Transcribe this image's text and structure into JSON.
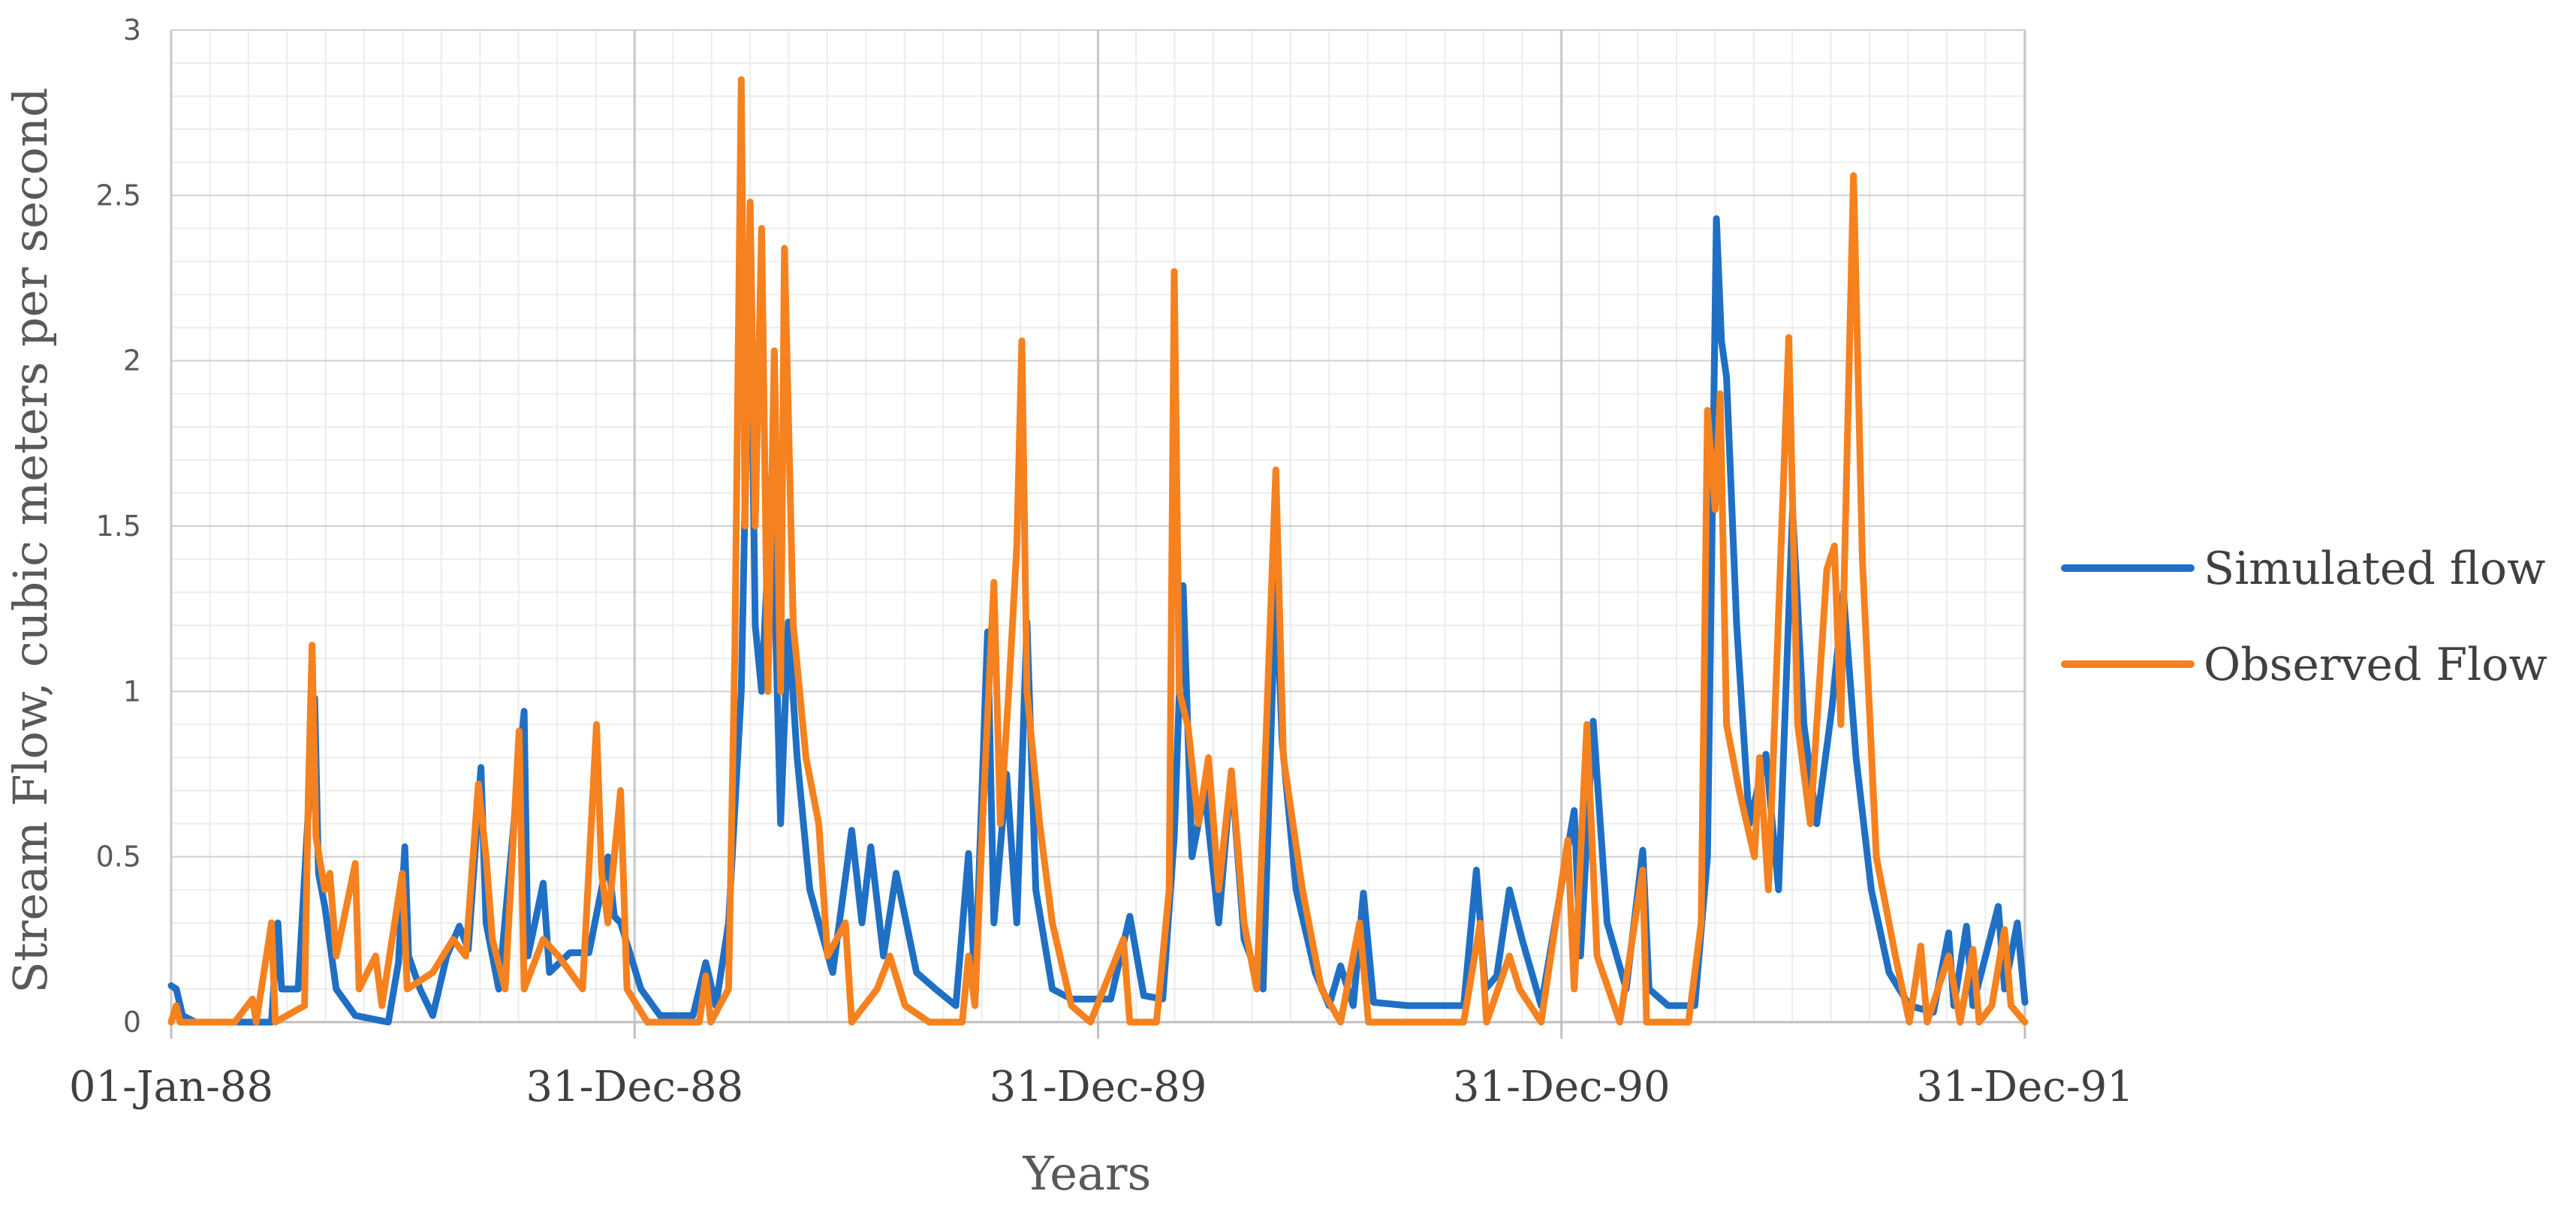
{
  "chart_data": {
    "type": "line",
    "ylabel": "Stream Flow, cubic meters per second",
    "xlabel": "Years",
    "ylim": [
      0,
      3
    ],
    "yticks": [
      "0",
      "0.5",
      "1",
      "1.5",
      "2",
      "2.5",
      "3"
    ],
    "xlim": [
      "1988-01-01",
      "1991-12-31"
    ],
    "xticks": [
      {
        "label": "01-Jan-88",
        "date": "1988-01-01"
      },
      {
        "label": "31-Dec-88",
        "date": "1988-12-31"
      },
      {
        "label": "31-Dec-89",
        "date": "1989-12-31"
      },
      {
        "label": "31-Dec-90",
        "date": "1990-12-31"
      },
      {
        "label": "31-Dec-91",
        "date": "1991-12-31"
      }
    ],
    "grid": true,
    "legend_position": "right",
    "series": [
      {
        "name": "Simulated flow",
        "color": "#1F6FC5",
        "points": [
          [
            "1988-01-01",
            0.11
          ],
          [
            "1988-01-05",
            0.1
          ],
          [
            "1988-01-10",
            0.02
          ],
          [
            "1988-01-20",
            0.0
          ],
          [
            "1988-03-01",
            0.0
          ],
          [
            "1988-03-20",
            0.0
          ],
          [
            "1988-03-25",
            0.3
          ],
          [
            "1988-03-28",
            0.1
          ],
          [
            "1988-04-10",
            0.1
          ],
          [
            "1988-04-20",
            0.77
          ],
          [
            "1988-04-23",
            0.98
          ],
          [
            "1988-04-26",
            0.45
          ],
          [
            "1988-05-01",
            0.35
          ],
          [
            "1988-05-10",
            0.1
          ],
          [
            "1988-05-25",
            0.02
          ],
          [
            "1988-06-20",
            0.0
          ],
          [
            "1988-06-28",
            0.18
          ],
          [
            "1988-07-03",
            0.53
          ],
          [
            "1988-07-06",
            0.2
          ],
          [
            "1988-07-15",
            0.1
          ],
          [
            "1988-07-25",
            0.02
          ],
          [
            "1988-08-05",
            0.2
          ],
          [
            "1988-08-15",
            0.29
          ],
          [
            "1988-08-22",
            0.22
          ],
          [
            "1988-09-01",
            0.77
          ],
          [
            "1988-09-05",
            0.3
          ],
          [
            "1988-09-15",
            0.1
          ],
          [
            "1988-10-05",
            0.94
          ],
          [
            "1988-10-08",
            0.2
          ],
          [
            "1988-10-20",
            0.42
          ],
          [
            "1988-10-25",
            0.15
          ],
          [
            "1988-11-10",
            0.21
          ],
          [
            "1988-11-25",
            0.21
          ],
          [
            "1988-12-10",
            0.5
          ],
          [
            "1988-12-15",
            0.32
          ],
          [
            "1988-12-20",
            0.3
          ],
          [
            "1989-01-05",
            0.1
          ],
          [
            "1989-01-20",
            0.02
          ],
          [
            "1989-02-15",
            0.02
          ],
          [
            "1989-02-25",
            0.18
          ],
          [
            "1989-03-05",
            0.05
          ],
          [
            "1989-03-15",
            0.3
          ],
          [
            "1989-03-25",
            1.0
          ],
          [
            "1989-04-01",
            2.35
          ],
          [
            "1989-04-05",
            1.2
          ],
          [
            "1989-04-10",
            1.0
          ],
          [
            "1989-04-18",
            1.65
          ],
          [
            "1989-04-25",
            0.6
          ],
          [
            "1989-05-01",
            1.21
          ],
          [
            "1989-05-08",
            0.8
          ],
          [
            "1989-05-18",
            0.4
          ],
          [
            "1989-06-05",
            0.15
          ],
          [
            "1989-06-20",
            0.58
          ],
          [
            "1989-06-28",
            0.3
          ],
          [
            "1989-07-05",
            0.53
          ],
          [
            "1989-07-15",
            0.2
          ],
          [
            "1989-07-25",
            0.45
          ],
          [
            "1989-08-10",
            0.15
          ],
          [
            "1989-08-25",
            0.1
          ],
          [
            "1989-09-10",
            0.05
          ],
          [
            "1989-09-20",
            0.51
          ],
          [
            "1989-09-25",
            0.1
          ],
          [
            "1989-10-05",
            1.18
          ],
          [
            "1989-10-10",
            0.3
          ],
          [
            "1989-10-20",
            0.75
          ],
          [
            "1989-10-28",
            0.3
          ],
          [
            "1989-11-05",
            1.21
          ],
          [
            "1989-11-12",
            0.4
          ],
          [
            "1989-11-25",
            0.1
          ],
          [
            "1989-12-10",
            0.07
          ],
          [
            "1989-12-31",
            0.07
          ],
          [
            "1990-01-10",
            0.07
          ],
          [
            "1990-01-25",
            0.32
          ],
          [
            "1990-02-05",
            0.08
          ],
          [
            "1990-02-20",
            0.07
          ],
          [
            "1990-03-01",
            0.56
          ],
          [
            "1990-03-08",
            1.32
          ],
          [
            "1990-03-15",
            0.5
          ],
          [
            "1990-03-25",
            0.7
          ],
          [
            "1990-04-05",
            0.3
          ],
          [
            "1990-04-15",
            0.76
          ],
          [
            "1990-04-25",
            0.25
          ],
          [
            "1990-05-10",
            0.1
          ],
          [
            "1990-05-20",
            1.34
          ],
          [
            "1990-05-25",
            0.85
          ],
          [
            "1990-06-05",
            0.4
          ],
          [
            "1990-06-20",
            0.15
          ],
          [
            "1990-07-01",
            0.05
          ],
          [
            "1990-07-10",
            0.17
          ],
          [
            "1990-07-20",
            0.05
          ],
          [
            "1990-07-28",
            0.39
          ],
          [
            "1990-08-05",
            0.06
          ],
          [
            "1990-09-01",
            0.05
          ],
          [
            "1990-10-01",
            0.05
          ],
          [
            "1990-10-15",
            0.05
          ],
          [
            "1990-10-25",
            0.46
          ],
          [
            "1990-11-01",
            0.1
          ],
          [
            "1990-11-10",
            0.14
          ],
          [
            "1990-11-20",
            0.4
          ],
          [
            "1990-11-30",
            0.25
          ],
          [
            "1990-12-15",
            0.05
          ],
          [
            "1991-01-10",
            0.64
          ],
          [
            "1991-01-15",
            0.2
          ],
          [
            "1991-01-25",
            0.91
          ],
          [
            "1991-02-05",
            0.3
          ],
          [
            "1991-02-20",
            0.1
          ],
          [
            "1991-03-05",
            0.52
          ],
          [
            "1991-03-10",
            0.1
          ],
          [
            "1991-03-25",
            0.05
          ],
          [
            "1991-04-15",
            0.05
          ],
          [
            "1991-04-25",
            0.5
          ],
          [
            "1991-05-02",
            2.43
          ],
          [
            "1991-05-06",
            2.06
          ],
          [
            "1991-05-10",
            1.95
          ],
          [
            "1991-05-18",
            1.2
          ],
          [
            "1991-05-28",
            0.6
          ],
          [
            "1991-06-10",
            0.81
          ],
          [
            "1991-06-20",
            0.4
          ],
          [
            "1991-07-01",
            1.55
          ],
          [
            "1991-07-10",
            0.9
          ],
          [
            "1991-07-20",
            0.6
          ],
          [
            "1991-08-01",
            0.95
          ],
          [
            "1991-08-10",
            1.3
          ],
          [
            "1991-08-20",
            0.8
          ],
          [
            "1991-09-01",
            0.4
          ],
          [
            "1991-09-15",
            0.15
          ],
          [
            "1991-10-01",
            0.05
          ],
          [
            "1991-10-20",
            0.03
          ],
          [
            "1991-11-01",
            0.27
          ],
          [
            "1991-11-05",
            0.05
          ],
          [
            "1991-11-15",
            0.29
          ],
          [
            "1991-11-20",
            0.05
          ],
          [
            "1991-12-10",
            0.35
          ],
          [
            "1991-12-15",
            0.1
          ],
          [
            "1991-12-25",
            0.3
          ],
          [
            "1991-12-31",
            0.06
          ]
        ]
      },
      {
        "name": "Observed Flow",
        "color": "#F5811F",
        "points": [
          [
            "1988-01-01",
            0.0
          ],
          [
            "1988-01-05",
            0.05
          ],
          [
            "1988-01-08",
            0.0
          ],
          [
            "1988-02-20",
            0.0
          ],
          [
            "1988-03-05",
            0.07
          ],
          [
            "1988-03-08",
            0.0
          ],
          [
            "1988-03-20",
            0.3
          ],
          [
            "1988-03-23",
            0.0
          ],
          [
            "1988-04-15",
            0.05
          ],
          [
            "1988-04-18",
            0.68
          ],
          [
            "1988-04-21",
            1.14
          ],
          [
            "1988-04-24",
            0.56
          ],
          [
            "1988-05-01",
            0.4
          ],
          [
            "1988-05-05",
            0.45
          ],
          [
            "1988-05-10",
            0.2
          ],
          [
            "1988-05-25",
            0.48
          ],
          [
            "1988-05-28",
            0.1
          ],
          [
            "1988-06-10",
            0.2
          ],
          [
            "1988-06-15",
            0.05
          ],
          [
            "1988-07-01",
            0.45
          ],
          [
            "1988-07-05",
            0.1
          ],
          [
            "1988-07-25",
            0.15
          ],
          [
            "1988-08-10",
            0.25
          ],
          [
            "1988-08-20",
            0.2
          ],
          [
            "1988-08-30",
            0.72
          ],
          [
            "1988-09-05",
            0.5
          ],
          [
            "1988-09-10",
            0.25
          ],
          [
            "1988-09-20",
            0.1
          ],
          [
            "1988-10-01",
            0.88
          ],
          [
            "1988-10-05",
            0.1
          ],
          [
            "1988-10-20",
            0.25
          ],
          [
            "1988-11-01",
            0.2
          ],
          [
            "1988-11-20",
            0.1
          ],
          [
            "1988-12-01",
            0.9
          ],
          [
            "1988-12-05",
            0.45
          ],
          [
            "1988-12-10",
            0.3
          ],
          [
            "1988-12-20",
            0.7
          ],
          [
            "1988-12-25",
            0.1
          ],
          [
            "1989-01-10",
            0.0
          ],
          [
            "1989-02-20",
            0.0
          ],
          [
            "1989-02-25",
            0.14
          ],
          [
            "1989-03-01",
            0.0
          ],
          [
            "1989-03-15",
            0.1
          ],
          [
            "1989-03-20",
            1.13
          ],
          [
            "1989-03-25",
            2.85
          ],
          [
            "1989-03-28",
            1.5
          ],
          [
            "1989-04-01",
            2.48
          ],
          [
            "1989-04-05",
            1.5
          ],
          [
            "1989-04-10",
            2.4
          ],
          [
            "1989-04-15",
            1.0
          ],
          [
            "1989-04-20",
            2.03
          ],
          [
            "1989-04-25",
            1.0
          ],
          [
            "1989-04-28",
            2.34
          ],
          [
            "1989-05-05",
            1.2
          ],
          [
            "1989-05-15",
            0.8
          ],
          [
            "1989-05-25",
            0.6
          ],
          [
            "1989-06-01",
            0.2
          ],
          [
            "1989-06-15",
            0.3
          ],
          [
            "1989-06-20",
            0.0
          ],
          [
            "1989-07-10",
            0.1
          ],
          [
            "1989-07-20",
            0.2
          ],
          [
            "1989-08-01",
            0.05
          ],
          [
            "1989-08-20",
            0.0
          ],
          [
            "1989-09-15",
            0.0
          ],
          [
            "1989-09-20",
            0.2
          ],
          [
            "1989-09-25",
            0.05
          ],
          [
            "1989-10-01",
            0.6
          ],
          [
            "1989-10-10",
            1.33
          ],
          [
            "1989-10-15",
            0.6
          ],
          [
            "1989-10-22",
            1.02
          ],
          [
            "1989-10-28",
            1.44
          ],
          [
            "1989-11-01",
            2.06
          ],
          [
            "1989-11-05",
            1.0
          ],
          [
            "1989-11-15",
            0.6
          ],
          [
            "1989-11-25",
            0.3
          ],
          [
            "1989-12-10",
            0.05
          ],
          [
            "1989-12-25",
            0.0
          ],
          [
            "1990-01-20",
            0.25
          ],
          [
            "1990-01-25",
            0.0
          ],
          [
            "1990-02-15",
            0.0
          ],
          [
            "1990-02-25",
            0.4
          ],
          [
            "1990-03-01",
            2.27
          ],
          [
            "1990-03-05",
            1.0
          ],
          [
            "1990-03-12",
            0.89
          ],
          [
            "1990-03-20",
            0.6
          ],
          [
            "1990-03-28",
            0.8
          ],
          [
            "1990-04-05",
            0.4
          ],
          [
            "1990-04-15",
            0.76
          ],
          [
            "1990-04-25",
            0.3
          ],
          [
            "1990-05-05",
            0.1
          ],
          [
            "1990-05-20",
            1.67
          ],
          [
            "1990-05-26",
            0.8
          ],
          [
            "1990-06-10",
            0.4
          ],
          [
            "1990-06-25",
            0.1
          ],
          [
            "1990-07-10",
            0.0
          ],
          [
            "1990-07-25",
            0.3
          ],
          [
            "1990-08-01",
            0.0
          ],
          [
            "1990-09-01",
            0.0
          ],
          [
            "1990-10-15",
            0.0
          ],
          [
            "1990-10-28",
            0.3
          ],
          [
            "1990-11-02",
            0.0
          ],
          [
            "1990-11-20",
            0.2
          ],
          [
            "1990-11-28",
            0.1
          ],
          [
            "1990-12-15",
            0.0
          ],
          [
            "1991-01-05",
            0.55
          ],
          [
            "1991-01-10",
            0.1
          ],
          [
            "1991-01-20",
            0.9
          ],
          [
            "1991-01-28",
            0.2
          ],
          [
            "1991-02-15",
            0.0
          ],
          [
            "1991-03-05",
            0.46
          ],
          [
            "1991-03-08",
            0.0
          ],
          [
            "1991-04-10",
            0.0
          ],
          [
            "1991-04-20",
            0.3
          ],
          [
            "1991-04-25",
            1.85
          ],
          [
            "1991-05-01",
            1.55
          ],
          [
            "1991-05-05",
            1.9
          ],
          [
            "1991-05-10",
            0.9
          ],
          [
            "1991-05-20",
            0.7
          ],
          [
            "1991-06-01",
            0.5
          ],
          [
            "1991-06-05",
            0.8
          ],
          [
            "1991-06-12",
            0.4
          ],
          [
            "1991-06-28",
            2.07
          ],
          [
            "1991-07-05",
            0.9
          ],
          [
            "1991-07-15",
            0.6
          ],
          [
            "1991-07-28",
            1.37
          ],
          [
            "1991-08-03",
            1.44
          ],
          [
            "1991-08-08",
            0.9
          ],
          [
            "1991-08-18",
            2.56
          ],
          [
            "1991-08-25",
            1.4
          ],
          [
            "1991-09-05",
            0.5
          ],
          [
            "1991-09-20",
            0.2
          ],
          [
            "1991-10-01",
            0.0
          ],
          [
            "1991-10-10",
            0.23
          ],
          [
            "1991-10-15",
            0.0
          ],
          [
            "1991-11-01",
            0.2
          ],
          [
            "1991-11-10",
            0.0
          ],
          [
            "1991-11-20",
            0.22
          ],
          [
            "1991-11-25",
            0.0
          ],
          [
            "1991-12-05",
            0.05
          ],
          [
            "1991-12-15",
            0.28
          ],
          [
            "1991-12-20",
            0.05
          ],
          [
            "1991-12-31",
            0.0
          ]
        ]
      }
    ]
  }
}
